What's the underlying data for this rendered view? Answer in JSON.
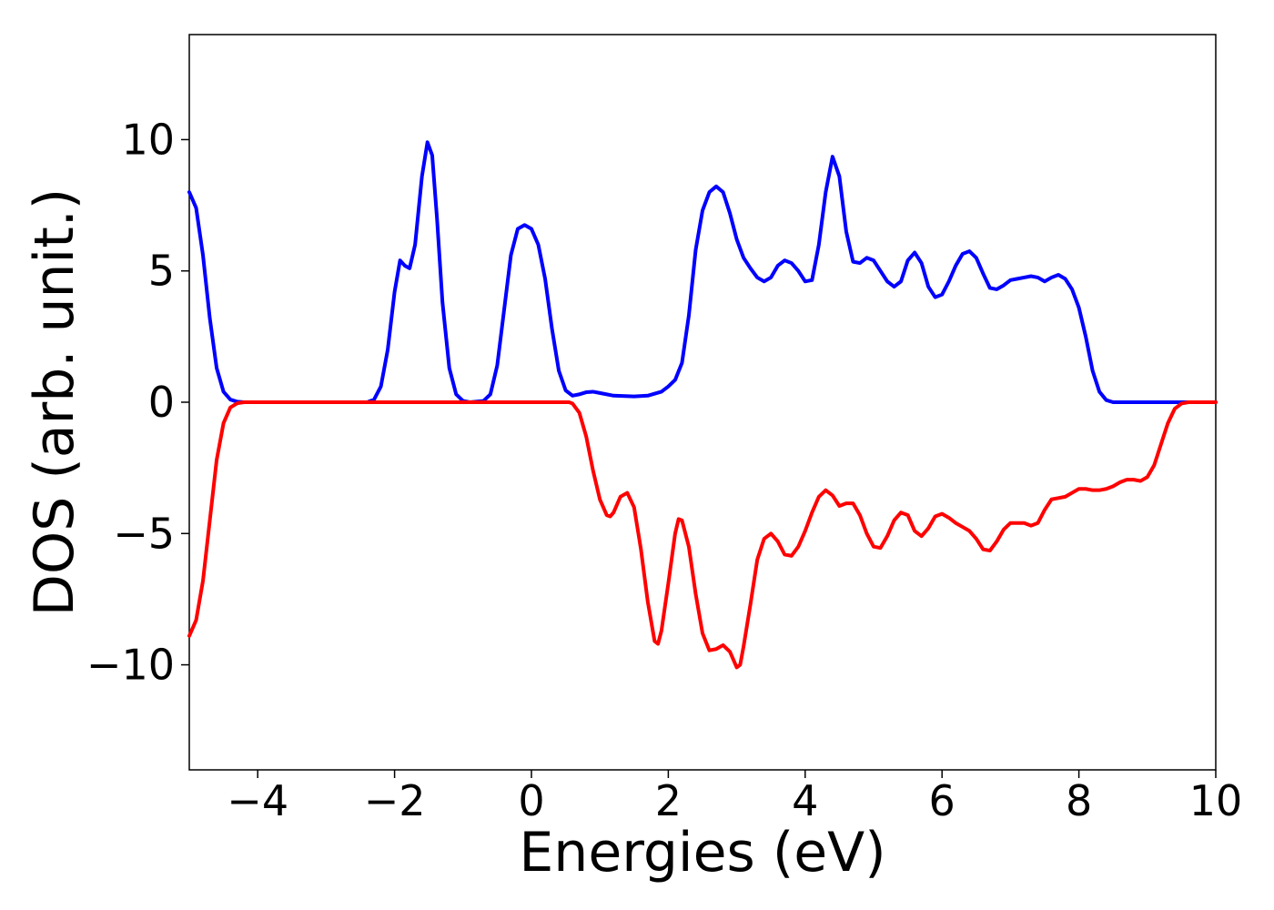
{
  "chart_data": {
    "type": "line",
    "title": "",
    "xlabel": "Energies (eV)",
    "ylabel": "DOS (arb. unit.)",
    "xlim": [
      -5,
      10
    ],
    "ylim": [
      -14,
      14
    ],
    "xticks": [
      -4,
      -2,
      0,
      2,
      4,
      6,
      8,
      10
    ],
    "xtick_labels": [
      "−4",
      "−2",
      "0",
      "2",
      "4",
      "6",
      "8",
      "10"
    ],
    "yticks": [
      -10,
      -5,
      0,
      5,
      10
    ],
    "ytick_labels": [
      "−10",
      "−5",
      "0",
      "5",
      "10"
    ],
    "grid": false,
    "legend": "none",
    "series": [
      {
        "color": "#0000ff",
        "points": [
          [
            -5.0,
            8.0
          ],
          [
            -4.9,
            7.4
          ],
          [
            -4.8,
            5.6
          ],
          [
            -4.7,
            3.2
          ],
          [
            -4.6,
            1.3
          ],
          [
            -4.5,
            0.4
          ],
          [
            -4.4,
            0.1
          ],
          [
            -4.3,
            0.02
          ],
          [
            -4.2,
            0.0
          ],
          [
            -2.4,
            0.0
          ],
          [
            -2.3,
            0.1
          ],
          [
            -2.2,
            0.6
          ],
          [
            -2.1,
            2.0
          ],
          [
            -2.0,
            4.2
          ],
          [
            -1.92,
            5.4
          ],
          [
            -1.85,
            5.2
          ],
          [
            -1.78,
            5.1
          ],
          [
            -1.7,
            6.0
          ],
          [
            -1.6,
            8.6
          ],
          [
            -1.52,
            9.9
          ],
          [
            -1.45,
            9.4
          ],
          [
            -1.38,
            7.0
          ],
          [
            -1.3,
            3.8
          ],
          [
            -1.2,
            1.3
          ],
          [
            -1.1,
            0.3
          ],
          [
            -1.0,
            0.05
          ],
          [
            -0.9,
            0.0
          ],
          [
            -0.7,
            0.05
          ],
          [
            -0.6,
            0.3
          ],
          [
            -0.5,
            1.4
          ],
          [
            -0.4,
            3.5
          ],
          [
            -0.3,
            5.6
          ],
          [
            -0.2,
            6.6
          ],
          [
            -0.1,
            6.75
          ],
          [
            0.0,
            6.6
          ],
          [
            0.1,
            6.0
          ],
          [
            0.2,
            4.7
          ],
          [
            0.3,
            2.8
          ],
          [
            0.4,
            1.2
          ],
          [
            0.5,
            0.45
          ],
          [
            0.6,
            0.25
          ],
          [
            0.7,
            0.3
          ],
          [
            0.8,
            0.38
          ],
          [
            0.9,
            0.4
          ],
          [
            1.0,
            0.35
          ],
          [
            1.2,
            0.25
          ],
          [
            1.5,
            0.22
          ],
          [
            1.7,
            0.25
          ],
          [
            1.9,
            0.4
          ],
          [
            2.0,
            0.6
          ],
          [
            2.1,
            0.85
          ],
          [
            2.2,
            1.5
          ],
          [
            2.3,
            3.3
          ],
          [
            2.4,
            5.8
          ],
          [
            2.5,
            7.3
          ],
          [
            2.6,
            8.0
          ],
          [
            2.7,
            8.22
          ],
          [
            2.8,
            8.0
          ],
          [
            2.9,
            7.2
          ],
          [
            3.0,
            6.2
          ],
          [
            3.1,
            5.5
          ],
          [
            3.2,
            5.1
          ],
          [
            3.3,
            4.75
          ],
          [
            3.4,
            4.6
          ],
          [
            3.5,
            4.75
          ],
          [
            3.6,
            5.2
          ],
          [
            3.7,
            5.4
          ],
          [
            3.8,
            5.3
          ],
          [
            3.9,
            5.0
          ],
          [
            4.0,
            4.6
          ],
          [
            4.1,
            4.65
          ],
          [
            4.2,
            6.0
          ],
          [
            4.3,
            8.0
          ],
          [
            4.4,
            9.35
          ],
          [
            4.5,
            8.6
          ],
          [
            4.6,
            6.5
          ],
          [
            4.7,
            5.35
          ],
          [
            4.8,
            5.3
          ],
          [
            4.9,
            5.5
          ],
          [
            5.0,
            5.4
          ],
          [
            5.1,
            5.0
          ],
          [
            5.2,
            4.6
          ],
          [
            5.3,
            4.4
          ],
          [
            5.4,
            4.6
          ],
          [
            5.5,
            5.4
          ],
          [
            5.6,
            5.7
          ],
          [
            5.7,
            5.3
          ],
          [
            5.8,
            4.4
          ],
          [
            5.9,
            4.0
          ],
          [
            6.0,
            4.1
          ],
          [
            6.1,
            4.6
          ],
          [
            6.2,
            5.2
          ],
          [
            6.3,
            5.65
          ],
          [
            6.4,
            5.75
          ],
          [
            6.5,
            5.5
          ],
          [
            6.6,
            4.9
          ],
          [
            6.7,
            4.35
          ],
          [
            6.8,
            4.3
          ],
          [
            6.9,
            4.45
          ],
          [
            7.0,
            4.65
          ],
          [
            7.1,
            4.7
          ],
          [
            7.2,
            4.75
          ],
          [
            7.3,
            4.8
          ],
          [
            7.4,
            4.75
          ],
          [
            7.5,
            4.6
          ],
          [
            7.6,
            4.75
          ],
          [
            7.7,
            4.85
          ],
          [
            7.8,
            4.7
          ],
          [
            7.9,
            4.3
          ],
          [
            8.0,
            3.6
          ],
          [
            8.1,
            2.5
          ],
          [
            8.2,
            1.2
          ],
          [
            8.3,
            0.4
          ],
          [
            8.4,
            0.08
          ],
          [
            8.5,
            0.0
          ],
          [
            10.0,
            0.0
          ]
        ]
      },
      {
        "color": "#ff0000",
        "points": [
          [
            -5.0,
            -8.9
          ],
          [
            -4.9,
            -8.3
          ],
          [
            -4.8,
            -6.8
          ],
          [
            -4.7,
            -4.5
          ],
          [
            -4.6,
            -2.2
          ],
          [
            -4.5,
            -0.8
          ],
          [
            -4.4,
            -0.2
          ],
          [
            -4.3,
            -0.04
          ],
          [
            -4.2,
            0.0
          ],
          [
            0.55,
            0.0
          ],
          [
            0.6,
            -0.05
          ],
          [
            0.7,
            -0.4
          ],
          [
            0.8,
            -1.3
          ],
          [
            0.9,
            -2.6
          ],
          [
            1.0,
            -3.7
          ],
          [
            1.1,
            -4.3
          ],
          [
            1.15,
            -4.35
          ],
          [
            1.2,
            -4.2
          ],
          [
            1.3,
            -3.6
          ],
          [
            1.4,
            -3.45
          ],
          [
            1.5,
            -4.0
          ],
          [
            1.6,
            -5.6
          ],
          [
            1.7,
            -7.6
          ],
          [
            1.8,
            -9.1
          ],
          [
            1.85,
            -9.2
          ],
          [
            1.9,
            -8.7
          ],
          [
            2.0,
            -6.9
          ],
          [
            2.1,
            -5.0
          ],
          [
            2.15,
            -4.45
          ],
          [
            2.2,
            -4.5
          ],
          [
            2.3,
            -5.5
          ],
          [
            2.4,
            -7.3
          ],
          [
            2.5,
            -8.8
          ],
          [
            2.6,
            -9.45
          ],
          [
            2.7,
            -9.4
          ],
          [
            2.8,
            -9.25
          ],
          [
            2.9,
            -9.5
          ],
          [
            3.0,
            -10.1
          ],
          [
            3.05,
            -10.0
          ],
          [
            3.1,
            -9.3
          ],
          [
            3.2,
            -7.7
          ],
          [
            3.3,
            -6.0
          ],
          [
            3.4,
            -5.2
          ],
          [
            3.5,
            -5.0
          ],
          [
            3.6,
            -5.3
          ],
          [
            3.7,
            -5.8
          ],
          [
            3.8,
            -5.85
          ],
          [
            3.9,
            -5.5
          ],
          [
            4.0,
            -4.9
          ],
          [
            4.1,
            -4.2
          ],
          [
            4.2,
            -3.6
          ],
          [
            4.3,
            -3.35
          ],
          [
            4.4,
            -3.55
          ],
          [
            4.5,
            -3.95
          ],
          [
            4.6,
            -3.85
          ],
          [
            4.7,
            -3.85
          ],
          [
            4.8,
            -4.3
          ],
          [
            4.9,
            -5.0
          ],
          [
            5.0,
            -5.5
          ],
          [
            5.1,
            -5.55
          ],
          [
            5.2,
            -5.1
          ],
          [
            5.3,
            -4.5
          ],
          [
            5.4,
            -4.2
          ],
          [
            5.5,
            -4.3
          ],
          [
            5.6,
            -4.9
          ],
          [
            5.7,
            -5.1
          ],
          [
            5.8,
            -4.8
          ],
          [
            5.9,
            -4.35
          ],
          [
            6.0,
            -4.25
          ],
          [
            6.1,
            -4.4
          ],
          [
            6.2,
            -4.6
          ],
          [
            6.3,
            -4.75
          ],
          [
            6.4,
            -4.9
          ],
          [
            6.5,
            -5.2
          ],
          [
            6.6,
            -5.6
          ],
          [
            6.7,
            -5.65
          ],
          [
            6.8,
            -5.3
          ],
          [
            6.9,
            -4.85
          ],
          [
            7.0,
            -4.6
          ],
          [
            7.2,
            -4.6
          ],
          [
            7.3,
            -4.7
          ],
          [
            7.4,
            -4.6
          ],
          [
            7.5,
            -4.1
          ],
          [
            7.6,
            -3.7
          ],
          [
            7.7,
            -3.65
          ],
          [
            7.8,
            -3.6
          ],
          [
            7.9,
            -3.45
          ],
          [
            8.0,
            -3.3
          ],
          [
            8.1,
            -3.3
          ],
          [
            8.2,
            -3.35
          ],
          [
            8.3,
            -3.35
          ],
          [
            8.4,
            -3.3
          ],
          [
            8.5,
            -3.2
          ],
          [
            8.6,
            -3.05
          ],
          [
            8.7,
            -2.95
          ],
          [
            8.8,
            -2.95
          ],
          [
            8.9,
            -3.0
          ],
          [
            9.0,
            -2.85
          ],
          [
            9.1,
            -2.4
          ],
          [
            9.2,
            -1.6
          ],
          [
            9.3,
            -0.8
          ],
          [
            9.4,
            -0.25
          ],
          [
            9.5,
            -0.05
          ],
          [
            9.6,
            0.0
          ],
          [
            10.0,
            0.0
          ]
        ]
      }
    ]
  }
}
